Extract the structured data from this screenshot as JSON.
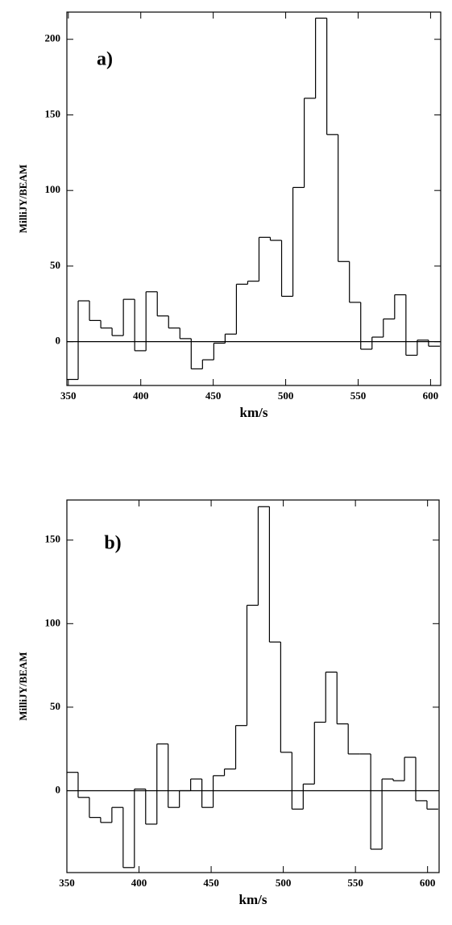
{
  "chart_data": [
    {
      "type": "histogram",
      "annotation": "a)",
      "x_label": "km/s",
      "y_label": "MilliJY/BEAM",
      "bins": [
        349,
        356.8,
        364.6,
        372.4,
        380.2,
        388,
        395.8,
        403.6,
        411.4,
        419.2,
        427,
        434.8,
        442.6,
        450.4,
        458.2,
        466,
        473.8,
        481.6,
        489.4,
        497.2,
        505,
        512.8,
        520.6,
        528.4,
        536.2,
        544,
        551.8,
        559.6,
        567.4,
        575.2,
        583,
        590.8,
        598.6,
        606.4
      ],
      "values": [
        -25,
        27,
        14,
        9,
        4,
        28,
        -6,
        33,
        17,
        9,
        2,
        -18,
        -12,
        -1,
        5,
        38,
        40,
        69,
        67,
        30,
        102,
        161,
        214,
        137,
        53,
        26,
        -5,
        3,
        15,
        31,
        -9,
        1,
        -3
      ],
      "xlim": [
        349,
        607
      ],
      "ylim": [
        -29,
        218
      ],
      "xticks": [
        350,
        400,
        450,
        500,
        550,
        600
      ],
      "yticks": [
        0,
        50,
        100,
        150,
        200
      ],
      "color": "#000000"
    },
    {
      "type": "histogram",
      "annotation": "b)",
      "x_label": "km/s",
      "y_label": "MilliJY/BEAM",
      "bins": [
        350,
        357.8,
        365.6,
        373.4,
        381.2,
        389,
        396.8,
        404.6,
        412.4,
        420.2,
        428,
        435.8,
        443.6,
        451.4,
        459.2,
        467,
        474.8,
        482.6,
        490.4,
        498.2,
        506,
        513.8,
        521.6,
        529.4,
        537.2,
        545,
        552.8,
        560.6,
        568.4,
        576.2,
        584,
        591.8,
        599.6,
        607.4
      ],
      "values": [
        11,
        -4,
        -16,
        -19,
        -10,
        -46,
        1,
        -20,
        28,
        -10,
        0,
        7,
        -10,
        9,
        13,
        39,
        111,
        170,
        89,
        23,
        -11,
        4,
        41,
        71,
        40,
        22,
        22,
        -35,
        7,
        6,
        20,
        -6,
        -11
      ],
      "xlim": [
        350,
        608
      ],
      "ylim": [
        -49,
        174
      ],
      "xticks": [
        350,
        400,
        450,
        500,
        550,
        600
      ],
      "yticks": [
        0,
        50,
        100,
        150
      ],
      "color": "#000000"
    }
  ]
}
